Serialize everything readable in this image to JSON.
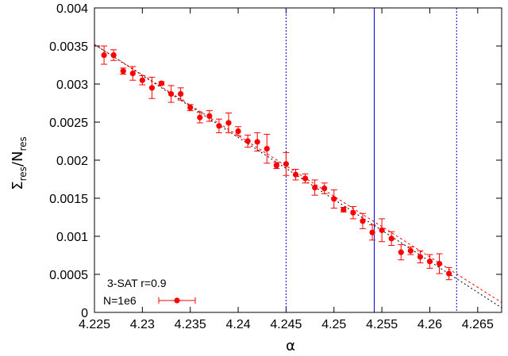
{
  "chart_data": {
    "type": "scatter",
    "xlabel": "α",
    "ylabel": {
      "base": "Σ",
      "sub": "res",
      "slash": "/N",
      "sub2": "res"
    },
    "xlim": [
      4.225,
      4.2675
    ],
    "ylim": [
      0,
      0.004
    ],
    "xticks": [
      {
        "v": 4.225,
        "label": "4.225"
      },
      {
        "v": 4.23,
        "label": "4.23"
      },
      {
        "v": 4.235,
        "label": "4.235"
      },
      {
        "v": 4.24,
        "label": "4.24"
      },
      {
        "v": 4.245,
        "label": "4.245"
      },
      {
        "v": 4.25,
        "label": "4.25"
      },
      {
        "v": 4.255,
        "label": "4.255"
      },
      {
        "v": 4.26,
        "label": "4.26"
      },
      {
        "v": 4.265,
        "label": "4.265"
      }
    ],
    "yticks": [
      {
        "v": 0,
        "label": "0"
      },
      {
        "v": 0.0005,
        "label": "0.0005"
      },
      {
        "v": 0.001,
        "label": "0.001"
      },
      {
        "v": 0.0015,
        "label": "0.0015"
      },
      {
        "v": 0.002,
        "label": "0.002"
      },
      {
        "v": 0.0025,
        "label": "0.0025"
      },
      {
        "v": 0.003,
        "label": "0.003"
      },
      {
        "v": 0.0035,
        "label": "0.0035"
      },
      {
        "v": 0.004,
        "label": "0.004"
      }
    ],
    "grid": false,
    "legend": {
      "title": "3-SAT r=0.9",
      "entry": "N=1e6",
      "placement": "bottom-left"
    },
    "series": [
      {
        "name": "N=1e6",
        "color": "#ff0000",
        "points": [
          {
            "x": 4.226,
            "y": 0.00338,
            "err": 0.00012
          },
          {
            "x": 4.227,
            "y": 0.00338,
            "err": 7e-05
          },
          {
            "x": 4.228,
            "y": 0.00317,
            "err": 4e-05
          },
          {
            "x": 4.229,
            "y": 0.00314,
            "err": 9e-05
          },
          {
            "x": 4.23,
            "y": 0.00305,
            "err": 6e-05
          },
          {
            "x": 4.231,
            "y": 0.00295,
            "err": 0.00014
          },
          {
            "x": 4.232,
            "y": 0.00301,
            "err": 2e-05
          },
          {
            "x": 4.233,
            "y": 0.00287,
            "err": 0.00011
          },
          {
            "x": 4.234,
            "y": 0.00287,
            "err": 8e-05
          },
          {
            "x": 4.235,
            "y": 0.00269,
            "err": 4e-05
          },
          {
            "x": 4.236,
            "y": 0.00256,
            "err": 7e-05
          },
          {
            "x": 4.237,
            "y": 0.00258,
            "err": 7e-05
          },
          {
            "x": 4.238,
            "y": 0.00245,
            "err": 9e-05
          },
          {
            "x": 4.239,
            "y": 0.00249,
            "err": 0.00013
          },
          {
            "x": 4.24,
            "y": 0.00238,
            "err": 6e-05
          },
          {
            "x": 4.241,
            "y": 0.00225,
            "err": 8e-05
          },
          {
            "x": 4.242,
            "y": 0.00224,
            "err": 0.00012
          },
          {
            "x": 4.243,
            "y": 0.00215,
            "err": 0.00019
          },
          {
            "x": 4.244,
            "y": 0.00193,
            "err": 4e-05
          },
          {
            "x": 4.245,
            "y": 0.00195,
            "err": 0.00015
          },
          {
            "x": 4.246,
            "y": 0.00181,
            "err": 7e-05
          },
          {
            "x": 4.247,
            "y": 0.00176,
            "err": 6e-05
          },
          {
            "x": 4.248,
            "y": 0.00164,
            "err": 0.0001
          },
          {
            "x": 4.249,
            "y": 0.00163,
            "err": 7e-05
          },
          {
            "x": 4.25,
            "y": 0.00149,
            "err": 0.00012
          },
          {
            "x": 4.251,
            "y": 0.00135,
            "err": 3e-05
          },
          {
            "x": 4.252,
            "y": 0.00131,
            "err": 8e-05
          },
          {
            "x": 4.253,
            "y": 0.0012,
            "err": 0.0001
          },
          {
            "x": 4.254,
            "y": 0.00105,
            "err": 0.0001
          },
          {
            "x": 4.255,
            "y": 0.00108,
            "err": 0.00015
          },
          {
            "x": 4.256,
            "y": 0.00097,
            "err": 9e-05
          },
          {
            "x": 4.257,
            "y": 0.00079,
            "err": 0.0001
          },
          {
            "x": 4.258,
            "y": 0.00081,
            "err": 5e-05
          },
          {
            "x": 4.259,
            "y": 0.00073,
            "err": 8e-05
          },
          {
            "x": 4.26,
            "y": 0.00067,
            "err": 9e-05
          },
          {
            "x": 4.261,
            "y": 0.00064,
            "err": 0.00013
          },
          {
            "x": 4.262,
            "y": 0.00051,
            "err": 8e-05
          }
        ]
      }
    ],
    "fit_lines": [
      {
        "color": "#000000",
        "dash": "2,3",
        "from": {
          "x": 4.225,
          "y": 0.00352
        },
        "to": {
          "x": 4.2675,
          "y": 6e-05
        }
      },
      {
        "color": "#ff0000",
        "dash": "3,3",
        "from": {
          "x": 4.225,
          "y": 0.00352
        },
        "to": {
          "x": 4.2675,
          "y": 0.00013
        }
      }
    ],
    "vertical_lines": [
      {
        "x": 4.245,
        "color": "#0000cc",
        "dash": "2,2"
      },
      {
        "x": 4.2542,
        "color": "#0000cc",
        "dash": ""
      },
      {
        "x": 4.2628,
        "color": "#0000cc",
        "dash": "2,2"
      }
    ]
  }
}
